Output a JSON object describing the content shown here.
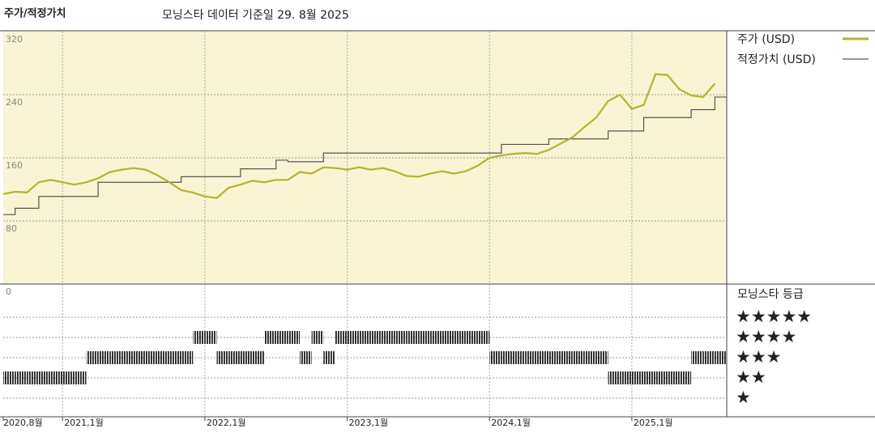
{
  "chart_data": {
    "type": "line",
    "title": "주가/적정가치",
    "subtitle": "모닝스타 데이터 기준일 29. 8월 2025",
    "x": [
      "2020-08",
      "2020-09",
      "2020-10",
      "2020-11",
      "2020-12",
      "2021-01",
      "2021-02",
      "2021-03",
      "2021-04",
      "2021-05",
      "2021-06",
      "2021-07",
      "2021-08",
      "2021-09",
      "2021-10",
      "2021-11",
      "2021-12",
      "2022-01",
      "2022-02",
      "2022-03",
      "2022-04",
      "2022-05",
      "2022-06",
      "2022-07",
      "2022-08",
      "2022-09",
      "2022-10",
      "2022-11",
      "2022-12",
      "2023-01",
      "2023-02",
      "2023-03",
      "2023-04",
      "2023-05",
      "2023-06",
      "2023-07",
      "2023-08",
      "2023-09",
      "2023-10",
      "2023-11",
      "2023-12",
      "2024-01",
      "2024-02",
      "2024-03",
      "2024-04",
      "2024-05",
      "2024-06",
      "2024-07",
      "2024-08",
      "2024-09",
      "2024-10",
      "2024-11",
      "2024-12",
      "2025-01",
      "2025-02",
      "2025-03",
      "2025-04",
      "2025-05",
      "2025-06",
      "2025-07",
      "2025-08"
    ],
    "series": [
      {
        "name": "주가 (USD)",
        "color": "#b4b42a",
        "values": [
          114,
          117,
          116,
          129,
          132,
          129,
          126,
          129,
          134,
          142,
          145,
          147,
          145,
          138,
          129,
          119,
          116,
          111,
          109,
          122,
          126,
          131,
          129,
          132,
          132,
          142,
          140,
          148,
          147,
          145,
          148,
          145,
          147,
          143,
          137,
          136,
          140,
          143,
          140,
          143,
          150,
          160,
          163,
          165,
          166,
          165,
          170,
          178,
          186,
          199,
          211,
          232,
          240,
          222,
          227,
          266,
          265,
          247,
          239,
          237,
          254
        ]
      },
      {
        "name": "적정가치 (USD)",
        "color": "#555555",
        "step": true,
        "values": [
          88,
          96,
          96,
          111,
          111,
          111,
          111,
          111,
          129,
          129,
          129,
          129,
          129,
          129,
          129,
          136,
          136,
          136,
          136,
          136,
          146,
          146,
          146,
          157,
          155,
          155,
          155,
          166,
          166,
          166,
          166,
          166,
          166,
          166,
          166,
          166,
          166,
          166,
          166,
          166,
          166,
          166,
          177,
          177,
          177,
          177,
          184,
          184,
          184,
          184,
          184,
          194,
          194,
          194,
          211,
          211,
          211,
          211,
          221,
          221,
          237
        ]
      }
    ],
    "xlim": [
      "2020-08",
      "2025-09"
    ],
    "xticks": [
      {
        "value": "2020-08",
        "label": "2020,8월"
      },
      {
        "value": "2021-01",
        "label": "2021,1월"
      },
      {
        "value": "2022-01",
        "label": "2022,1월"
      },
      {
        "value": "2023-01",
        "label": "2023,1월"
      },
      {
        "value": "2024-01",
        "label": "2024,1월"
      },
      {
        "value": "2025-01",
        "label": "2025,1월"
      }
    ],
    "ylim": [
      0,
      320
    ],
    "yticks": [
      0,
      80,
      160,
      240,
      320
    ],
    "grid": true,
    "ratings": {
      "title": "모닝스타 등급",
      "levels": [
        {
          "value": 5,
          "label": "★★★★★"
        },
        {
          "value": 4,
          "label": "★★★★"
        },
        {
          "value": 3,
          "label": "★★★"
        },
        {
          "value": 2,
          "label": "★★"
        },
        {
          "value": 1,
          "label": "★"
        }
      ],
      "values": [
        2,
        2,
        2,
        2,
        2,
        2,
        2,
        3,
        3,
        3,
        3,
        3,
        3,
        3,
        3,
        3,
        4,
        4,
        3,
        3,
        3,
        3,
        4,
        4,
        4,
        3,
        4,
        3,
        4,
        4,
        4,
        4,
        4,
        4,
        4,
        4,
        4,
        4,
        4,
        4,
        4,
        3,
        3,
        3,
        3,
        3,
        3,
        3,
        3,
        3,
        3,
        2,
        2,
        2,
        2,
        2,
        2,
        2,
        3,
        3,
        3
      ]
    }
  }
}
